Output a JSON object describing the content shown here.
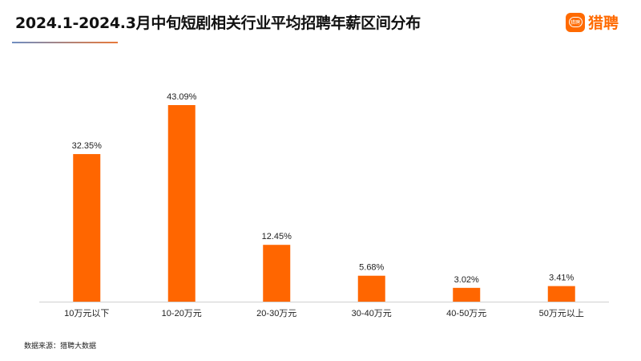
{
  "title": "2024.1-2024.3月中旬短剧相关行业平均招聘年薪区间分布",
  "logo": {
    "text": "猎聘",
    "icon_text": "猎聘",
    "color": "#ff6a00"
  },
  "source": "数据来源：猎聘大数据",
  "chart_data": {
    "type": "bar",
    "categories": [
      "10万元以下",
      "10-20万元",
      "20-30万元",
      "30-40万元",
      "40-50万元",
      "50万元以上"
    ],
    "values": [
      32.35,
      43.09,
      12.45,
      5.68,
      3.02,
      3.41
    ],
    "data_labels": [
      "32.35%",
      "43.09%",
      "12.45%",
      "5.68%",
      "3.02%",
      "3.41%"
    ],
    "unit": "%",
    "bar_color": "#ff6600",
    "ylim": [
      0,
      45
    ],
    "grid": false,
    "legend": "none"
  }
}
